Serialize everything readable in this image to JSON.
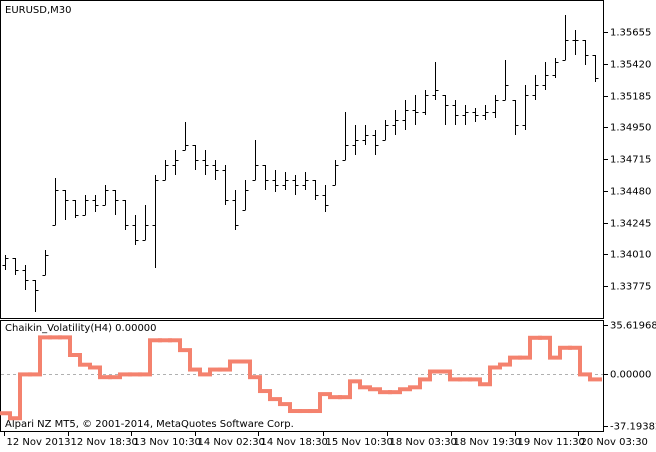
{
  "chart_data": [
    {
      "type": "ohlc",
      "title": "EURUSD,M30",
      "color": "#000000",
      "open": [
        1.33931,
        1.33983,
        1.33894,
        1.3382,
        1.33857,
        1.34227,
        1.34486,
        1.34412,
        1.34301,
        1.34412,
        1.34375,
        1.34486,
        1.34412,
        1.34227,
        1.34116,
        1.34227,
        1.3456,
        1.34671,
        1.34782,
        1.34819,
        1.34708,
        1.34671,
        1.34634,
        1.34412,
        1.34338,
        1.3456,
        1.34671,
        1.3456,
        1.34523,
        1.3456,
        1.34523,
        1.3456,
        1.34449,
        1.34523,
        1.34708,
        1.34819,
        1.34856,
        1.34893,
        1.34856,
        1.34967,
        1.35004,
        1.35078,
        1.35063,
        1.35189,
        1.35189,
        1.35115,
        1.35041,
        1.35063,
        1.35041,
        1.35063,
        1.35152,
        1.35152,
        1.34967,
        1.35189,
        1.35263,
        1.35337,
        1.35448,
        1.35596,
        1.35596,
        1.35485
      ],
      "high": [
        1.34005,
        1.33983,
        1.33931,
        1.3382,
        1.34042,
        1.34575,
        1.34486,
        1.34412,
        1.34449,
        1.34449,
        1.34523,
        1.34486,
        1.34412,
        1.34301,
        1.34375,
        1.34597,
        1.34708,
        1.34782,
        1.34989,
        1.34819,
        1.34782,
        1.34708,
        1.34671,
        1.34486,
        1.3456,
        1.34856,
        1.34671,
        1.34634,
        1.34619,
        1.34597,
        1.34619,
        1.3456,
        1.34523,
        1.34708,
        1.35063,
        1.34967,
        1.34967,
        1.3493,
        1.35004,
        1.35078,
        1.35152,
        1.35189,
        1.35226,
        1.35433,
        1.35189,
        1.35152,
        1.35115,
        1.35093,
        1.35115,
        1.35189,
        1.35448,
        1.35152,
        1.35263,
        1.35337,
        1.35433,
        1.35463,
        1.35781,
        1.3567,
        1.35596,
        1.35485
      ],
      "low": [
        1.33894,
        1.33857,
        1.33746,
        1.33583,
        1.33857,
        1.34227,
        1.34264,
        1.34279,
        1.34301,
        1.34323,
        1.34375,
        1.34301,
        1.3419,
        1.34079,
        1.34116,
        1.33909,
        1.3456,
        1.34597,
        1.34782,
        1.34634,
        1.34597,
        1.3456,
        1.34375,
        1.3419,
        1.34338,
        1.3456,
        1.34486,
        1.34471,
        1.34486,
        1.34449,
        1.34486,
        1.34412,
        1.34323,
        1.34523,
        1.34708,
        1.34745,
        1.34819,
        1.34745,
        1.34856,
        1.34893,
        1.3493,
        1.34967,
        1.35041,
        1.35152,
        1.34967,
        1.34967,
        1.34967,
        1.34989,
        1.35004,
        1.35019,
        1.35152,
        1.34893,
        1.3493,
        1.35152,
        1.35226,
        1.35315,
        1.35448,
        1.35485,
        1.35411,
        1.35285
      ],
      "close": [
        1.33983,
        1.33894,
        1.3382,
        1.33746,
        1.34005,
        1.34486,
        1.34412,
        1.34301,
        1.34412,
        1.34375,
        1.34486,
        1.34412,
        1.34227,
        1.34116,
        1.34227,
        1.3456,
        1.34671,
        1.34708,
        1.34819,
        1.34708,
        1.34671,
        1.34634,
        1.34412,
        1.34227,
        1.34486,
        1.34671,
        1.3456,
        1.34523,
        1.3456,
        1.34523,
        1.3456,
        1.34449,
        1.34375,
        1.34671,
        1.34819,
        1.34856,
        1.34893,
        1.34819,
        1.34967,
        1.35004,
        1.35078,
        1.35063,
        1.35189,
        1.35226,
        1.35115,
        1.35041,
        1.35063,
        1.35041,
        1.35063,
        1.35152,
        1.35263,
        1.34967,
        1.35189,
        1.35263,
        1.35337,
        1.35433,
        1.35596,
        1.35596,
        1.35485,
        1.35315
      ],
      "ylim": [
        1.33546,
        1.35877
      ],
      "yticks": [
        {
          "value": 1.35655,
          "label": "1.35655"
        },
        {
          "value": 1.3542,
          "label": "1.35420"
        },
        {
          "value": 1.35185,
          "label": "1.35185"
        },
        {
          "value": 1.3495,
          "label": "1.34950"
        },
        {
          "value": 1.34715,
          "label": "1.34715"
        },
        {
          "value": 1.3448,
          "label": "1.34480"
        },
        {
          "value": 1.34245,
          "label": "1.34245"
        },
        {
          "value": 1.3401,
          "label": "1.34010"
        },
        {
          "value": 1.33775,
          "label": "1.33775"
        }
      ]
    },
    {
      "type": "step",
      "title": "Chaikin_Volatility(H4) 0.00000",
      "annotation": "Alpari NZ MT5, © 2001-2014, MetaQuotes Software Corp.",
      "color": "#f4826e",
      "grid": true,
      "values": [
        -28,
        -31.6,
        0,
        0,
        26.7,
        26.7,
        26.7,
        14,
        7,
        5,
        -2,
        -2,
        0,
        0,
        0,
        24.6,
        24.6,
        24.6,
        17.5,
        3.5,
        0,
        3.5,
        3.5,
        9.3,
        9.3,
        -2,
        -12,
        -17.8,
        -21.4,
        -26.4,
        -26.4,
        -26.4,
        -14.2,
        -16.4,
        -16.4,
        -5,
        -9.3,
        -10.7,
        -12.8,
        -12.8,
        -10.7,
        -9.3,
        -3.6,
        2.1,
        2.1,
        -3.6,
        -3.6,
        -3.6,
        -7.1,
        5,
        7.1,
        12.1,
        12.1,
        26.4,
        26.4,
        12.1,
        19.2,
        19.2,
        0,
        -3.6
      ],
      "ylim": [
        -37.19382,
        35.61968
      ],
      "yticks": [
        35.61968,
        {
          "value": 0,
          "label": "0.00000"
        },
        -37.19382
      ],
      "xlim": [
        -0.5,
        59.5
      ],
      "xticks": [
        {
          "value": -0.1,
          "label": "12 Nov 2013"
        },
        {
          "value": 6.3,
          "label": "12 Nov 18:30"
        },
        {
          "value": 12.6,
          "label": "13 Nov 10:30"
        },
        {
          "value": 19,
          "label": "14 Nov 02:30"
        },
        {
          "value": 25.3,
          "label": "14 Nov 18:30"
        },
        {
          "value": 31.8,
          "label": "15 Nov 10:30"
        },
        {
          "value": 38.2,
          "label": "18 Nov 03:30"
        },
        {
          "value": 44.6,
          "label": "18 Nov 19:30"
        },
        {
          "value": 51,
          "label": "19 Nov 11:30"
        },
        {
          "value": 57.3,
          "label": "20 Nov 03:30"
        }
      ]
    }
  ]
}
